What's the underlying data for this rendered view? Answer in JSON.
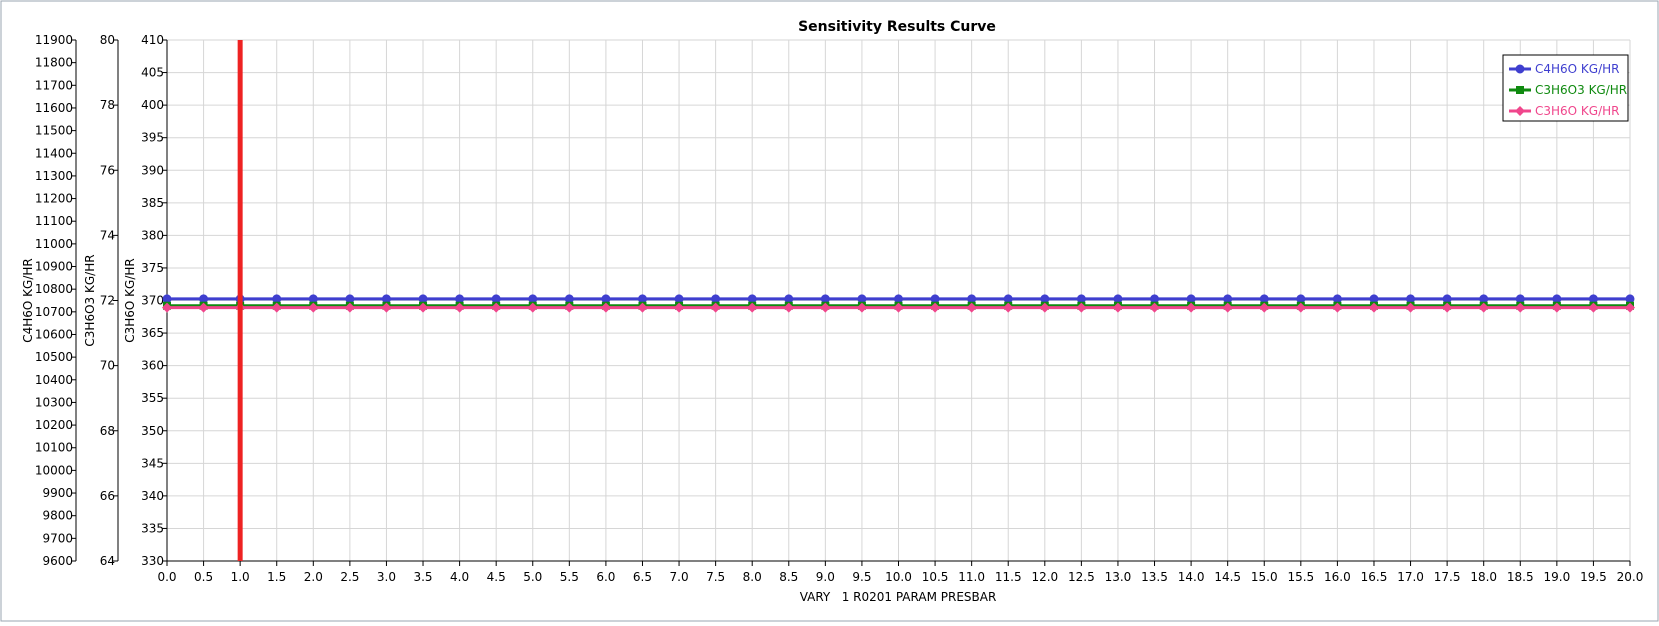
{
  "window": {
    "title": "Sensitivity Results Curve"
  },
  "chart_data": {
    "type": "line",
    "title": "Sensitivity Results Curve",
    "xlabel": "VARY   1 R0201 PARAM PRESBAR",
    "xlim": [
      0.0,
      20.0
    ],
    "x_step": 0.5,
    "x": [
      0.0,
      0.5,
      1.0,
      1.5,
      2.0,
      2.5,
      3.0,
      3.5,
      4.0,
      4.5,
      5.0,
      5.5,
      6.0,
      6.5,
      7.0,
      7.5,
      8.0,
      8.5,
      9.0,
      9.5,
      10.0,
      10.5,
      11.0,
      11.5,
      12.0,
      12.5,
      13.0,
      13.5,
      14.0,
      14.5,
      15.0,
      15.5,
      16.0,
      16.5,
      17.0,
      17.5,
      18.0,
      18.5,
      19.0,
      19.5,
      20.0
    ],
    "x_tick_labels": [
      "0.0",
      "0.5",
      "1.0",
      "1.5",
      "2.0",
      "2.5",
      "3.0",
      "3.5",
      "4.0",
      "4.5",
      "5.0",
      "5.5",
      "6.0",
      "6.5",
      "7.0",
      "7.5",
      "8.0",
      "8.5",
      "9.0",
      "9.5",
      "10.0",
      "10.5",
      "11.0",
      "11.5",
      "12.0",
      "12.5",
      "13.0",
      "13.5",
      "14.0",
      "14.5",
      "15.0",
      "15.5",
      "16.0",
      "16.5",
      "17.0",
      "17.5",
      "18.0",
      "18.5",
      "19.0",
      "19.5",
      "20.0"
    ],
    "y_axes": [
      {
        "id": "c4h6o",
        "label": "C4H6O KG/HR",
        "range": [
          9600,
          11900
        ],
        "step": 100,
        "tick_labels": [
          "9600",
          "9700",
          "9800",
          "9900",
          "10000",
          "10100",
          "10200",
          "10300",
          "10400",
          "10500",
          "10600",
          "10700",
          "10800",
          "10900",
          "11000",
          "11100",
          "11200",
          "11300",
          "11400",
          "11500",
          "11600",
          "11700",
          "11800",
          "11900"
        ]
      },
      {
        "id": "c3h6o3",
        "label": "C3H6O3 KG/HR",
        "range": [
          64,
          80
        ],
        "step": 2,
        "tick_labels": [
          "64",
          "66",
          "68",
          "70",
          "72",
          "74",
          "76",
          "78",
          "80"
        ]
      },
      {
        "id": "c3h6o",
        "label": "C3H6O KG/HR",
        "range": [
          330,
          410
        ],
        "step": 5,
        "tick_labels": [
          "330",
          "335",
          "340",
          "345",
          "350",
          "355",
          "360",
          "365",
          "370",
          "375",
          "380",
          "385",
          "390",
          "395",
          "400",
          "405",
          "410"
        ]
      }
    ],
    "series": [
      {
        "name": "C4H6O KG/HR",
        "axis": "c4h6o",
        "color": "#3f3fcf",
        "marker": "circle",
        "value": 10757
      },
      {
        "name": "C3H6O3 KG/HR",
        "axis": "c3h6o3",
        "color": "#0f8a0f",
        "marker": "square",
        "value": 71.84
      },
      {
        "name": "C3H6O KG/HR",
        "axis": "c3h6o",
        "color": "#f0468c",
        "marker": "diamond",
        "value": 368.9
      }
    ],
    "reference_line": {
      "x": 1.0,
      "color": "#ee2222"
    },
    "grid": true,
    "legend_position": "top-right"
  }
}
